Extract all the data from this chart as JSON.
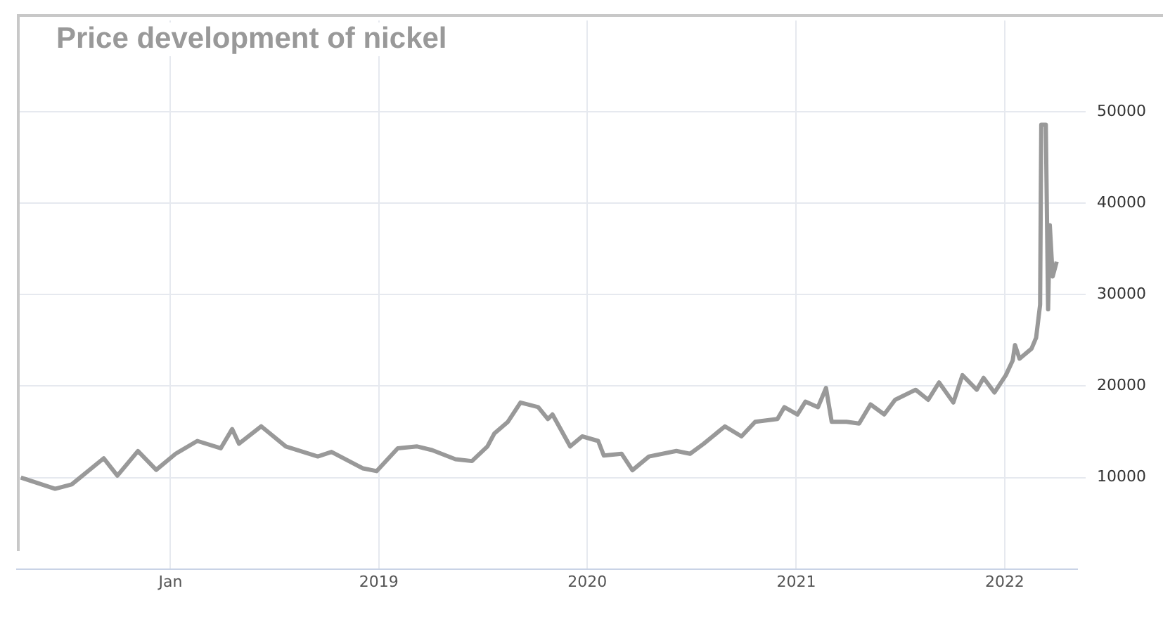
{
  "chart_data": {
    "type": "line",
    "title": "Price development of nickel",
    "x": [
      "2017-04-14",
      "2017-06-13",
      "2017-07-12",
      "2017-09-06",
      "2017-09-30",
      "2017-11-05",
      "2017-12-07",
      "2018-01-10",
      "2018-02-17",
      "2018-03-30",
      "2018-04-19",
      "2018-05-01",
      "2018-06-09",
      "2018-07-22",
      "2018-09-16",
      "2018-10-10",
      "2018-12-04",
      "2018-12-28",
      "2019-02-03",
      "2019-03-09",
      "2019-04-04",
      "2019-05-15",
      "2019-06-13",
      "2019-07-10",
      "2019-07-22",
      "2019-08-15",
      "2019-09-06",
      "2019-10-07",
      "2019-10-24",
      "2019-11-01",
      "2019-12-02",
      "2019-12-23",
      "2020-01-20",
      "2020-01-30",
      "2020-03-01",
      "2020-03-20",
      "2020-04-18",
      "2020-06-05",
      "2020-06-29",
      "2020-07-23",
      "2020-08-29",
      "2020-09-27",
      "2020-10-21",
      "2020-11-29",
      "2020-12-11",
      "2021-01-03",
      "2021-01-17",
      "2021-02-08",
      "2021-02-22",
      "2021-03-04",
      "2021-03-30",
      "2021-04-21",
      "2021-05-11",
      "2021-06-04",
      "2021-06-23",
      "2021-07-29",
      "2021-08-20",
      "2021-09-08",
      "2021-10-03",
      "2021-10-19",
      "2021-11-13",
      "2021-11-25",
      "2021-12-14",
      "2022-01-03",
      "2022-01-15",
      "2022-01-19",
      "2022-01-27",
      "2022-02-17",
      "2022-02-25",
      "2022-03-04",
      "2022-03-06",
      "2022-03-14",
      "2022-03-18",
      "2022-03-21",
      "2022-03-26",
      "2022-04-02"
    ],
    "series": [
      {
        "color": "#999999",
        "values": [
          10000,
          8770,
          9240,
          12100,
          10200,
          12900,
          10840,
          12600,
          14000,
          13200,
          15300,
          13700,
          15600,
          13400,
          12300,
          12800,
          11000,
          10700,
          13200,
          13400,
          13000,
          12000,
          11800,
          13400,
          14800,
          16100,
          18200,
          17700,
          16400,
          16900,
          13400,
          14500,
          14000,
          12400,
          12600,
          10800,
          12300,
          12900,
          12600,
          13700,
          15600,
          14500,
          16100,
          16400,
          17700,
          16900,
          18300,
          17700,
          19800,
          16100,
          16100,
          15900,
          18000,
          16900,
          18500,
          19600,
          18500,
          20400,
          18200,
          21200,
          19600,
          20900,
          19300,
          21200,
          22800,
          24500,
          23000,
          24100,
          25300,
          28900,
          48600,
          48600,
          28400,
          37600,
          32000,
          33600
        ]
      }
    ],
    "xlim": [
      "2017-04-07",
      "2022-05-08"
    ],
    "xticks": [
      {
        "value": "2018-01-01",
        "label": "Jan"
      },
      {
        "value": "2019-01-01",
        "label": "2019"
      },
      {
        "value": "2020-01-01",
        "label": "2020"
      },
      {
        "value": "2021-01-01",
        "label": "2021"
      },
      {
        "value": "2022-01-01",
        "label": "2022"
      }
    ],
    "ylim": [
      0,
      60000
    ],
    "yticks": [
      10000,
      20000,
      30000,
      40000,
      50000
    ],
    "grid": true,
    "legend": false,
    "marker": "none",
    "line_style": "solid"
  }
}
